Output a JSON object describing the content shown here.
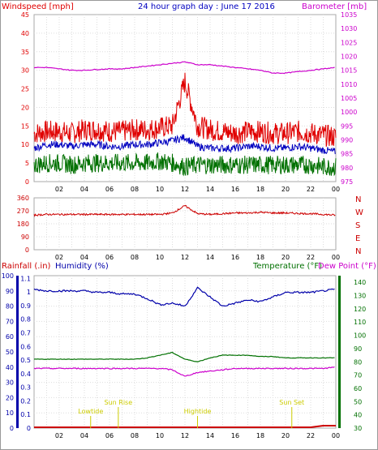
{
  "title": "24 hour graph day : June 17 2016",
  "colors": {
    "wind": "#e00000",
    "avg": "#0000c0",
    "gust_low": "#007000",
    "baro": "#cc00cc",
    "dir": "#cc0000",
    "hum": "#0000aa",
    "temp": "#007000",
    "dew": "#cc00cc",
    "rain": "#cc0000",
    "astro": "#cccc00"
  },
  "chart_data": [
    {
      "type": "line",
      "name": "wind-barometer",
      "ylabel": "Windspeed [mph]",
      "y2label": "Barometer [mb]",
      "ylim": [
        0,
        45
      ],
      "y2lim": [
        975,
        1035
      ],
      "yticks": [
        "0",
        "5",
        "10",
        "15",
        "20",
        "25",
        "30",
        "35",
        "40",
        "45"
      ],
      "y2ticks": [
        "975",
        "980",
        "985",
        "990",
        "995",
        "1000",
        "1005",
        "1010",
        "1015",
        "1020",
        "1025",
        "1030",
        "1035"
      ],
      "x_hours": [
        0,
        1,
        2,
        3,
        4,
        5,
        6,
        7,
        8,
        9,
        10,
        11,
        12,
        13,
        14,
        15,
        16,
        17,
        18,
        19,
        20,
        21,
        22,
        23,
        24
      ],
      "series": [
        {
          "key": "wind_high",
          "values": [
            13,
            13.5,
            13.5,
            13,
            14,
            14,
            13.5,
            13.5,
            14,
            14,
            14.5,
            15,
            27,
            15,
            14,
            13.5,
            13,
            13.5,
            13.5,
            13,
            13,
            13.5,
            13,
            12.5,
            12
          ]
        },
        {
          "key": "wind_avg",
          "values": [
            9,
            10,
            10,
            9.5,
            10,
            10,
            9.5,
            9.5,
            10,
            10,
            10.5,
            11,
            12,
            9.5,
            9,
            9,
            9,
            9.5,
            9.5,
            9,
            9,
            9.5,
            9,
            8.5,
            8
          ]
        },
        {
          "key": "wind_low",
          "values": [
            4.5,
            5,
            5,
            4.5,
            5,
            5,
            5,
            5,
            5,
            5,
            5.5,
            5,
            4,
            4.5,
            4.5,
            4.5,
            4.5,
            4.5,
            4.5,
            4.5,
            4.5,
            4.5,
            4.5,
            4,
            4
          ]
        },
        {
          "key": "barometer",
          "values": [
            1016,
            1016,
            1015.5,
            1015,
            1015,
            1015.3,
            1015.5,
            1015.5,
            1016,
            1016.5,
            1017,
            1017.5,
            1018,
            1017,
            1017,
            1016.5,
            1016,
            1015.5,
            1015,
            1014,
            1014,
            1014.5,
            1015,
            1015.5,
            1016
          ]
        }
      ]
    },
    {
      "type": "line",
      "name": "wind-direction",
      "ylim": [
        0,
        360
      ],
      "yticks": [
        "0",
        "90",
        "180",
        "270",
        "360"
      ],
      "compass": [
        "N",
        "W",
        "S",
        "E",
        "N"
      ],
      "x_hours": [
        0,
        1,
        2,
        3,
        4,
        5,
        6,
        7,
        8,
        9,
        10,
        11,
        12,
        13,
        14,
        15,
        16,
        17,
        18,
        19,
        20,
        21,
        22,
        23,
        24
      ],
      "series": [
        {
          "key": "direction",
          "values": [
            240,
            245,
            245,
            245,
            245,
            245,
            245,
            245,
            245,
            245,
            245,
            255,
            305,
            250,
            245,
            250,
            255,
            255,
            260,
            255,
            255,
            252,
            250,
            245,
            240
          ]
        }
      ]
    },
    {
      "type": "line",
      "name": "rain-humidity-temp",
      "ylabel_rain": "Rainfall (.in)",
      "ylabel_hum": "Humidity (%)",
      "ylabel_temp": "Temperature (°F)",
      "ylabel_dew": "Dew Point (°F)",
      "rain_ticks": [
        "0",
        "10",
        "20",
        "30",
        "40",
        "50",
        "60",
        "70",
        "80",
        "90",
        "100"
      ],
      "hum_ticks": [
        "0",
        "0.1",
        "0.2",
        "0.3",
        "0.4",
        "0.5",
        "0.6",
        "0.7",
        "0.8",
        "0.9",
        "1",
        "1.1"
      ],
      "temp_ticks": [
        "30",
        "40",
        "50",
        "60",
        "70",
        "80",
        "90",
        "100",
        "110",
        "120",
        "130",
        "140"
      ],
      "templim": [
        30,
        145
      ],
      "humlim": [
        0,
        100
      ],
      "x_hours": [
        0,
        1,
        2,
        3,
        4,
        5,
        6,
        7,
        8,
        9,
        10,
        11,
        12,
        13,
        14,
        15,
        16,
        17,
        18,
        19,
        20,
        21,
        22,
        23,
        24
      ],
      "series": [
        {
          "key": "humidity",
          "values": [
            91,
            90,
            90,
            90,
            90,
            89,
            89,
            88,
            88,
            85,
            81,
            82,
            80,
            92,
            86,
            80,
            82,
            84,
            83,
            86,
            89,
            89,
            89,
            90,
            91
          ]
        },
        {
          "key": "temperature",
          "values": [
            82,
            82,
            82,
            82,
            82,
            82,
            82,
            82,
            82,
            83,
            85,
            87,
            82,
            80,
            83,
            85,
            85,
            85,
            84,
            84,
            83,
            83,
            83,
            83,
            83
          ]
        },
        {
          "key": "dewpoint",
          "values": [
            75,
            75,
            75,
            75,
            75,
            75,
            75,
            75,
            75,
            75,
            75,
            74,
            69,
            72,
            73,
            74,
            75,
            75,
            75,
            75,
            75,
            75,
            75,
            75,
            76
          ]
        },
        {
          "key": "rain",
          "values": [
            0,
            0,
            0,
            0,
            0,
            0,
            0,
            0,
            0,
            0,
            0,
            0,
            0,
            0,
            0,
            0,
            0,
            0,
            0,
            0,
            0,
            0,
            0,
            1,
            1
          ]
        }
      ],
      "annotations": [
        {
          "text": "Lowtide",
          "hour": 4.5
        },
        {
          "text": "Sun Rise",
          "hour": 6.7
        },
        {
          "text": "Hightide",
          "hour": 13
        },
        {
          "text": "Sun Set",
          "hour": 20.5
        }
      ]
    }
  ],
  "x_ticks": [
    "02",
    "04",
    "06",
    "08",
    "10",
    "12",
    "14",
    "16",
    "18",
    "20",
    "22",
    "00"
  ]
}
